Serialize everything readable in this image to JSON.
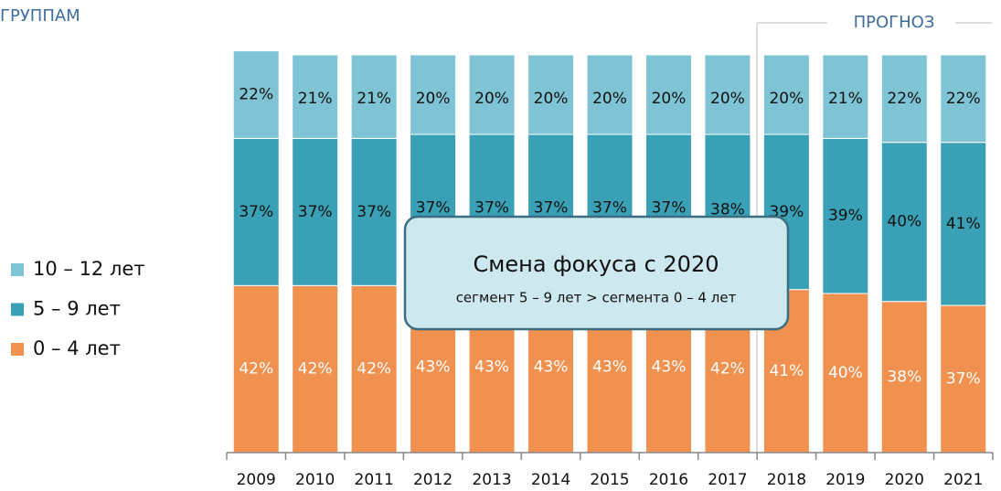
{
  "chart_data": {
    "type": "stacked_bar",
    "title": "ГРУППАМ",
    "forecast_label": "ПРОГНОЗ",
    "annotation": {
      "title": "Смена фокуса с 2020",
      "text": "сегмент 5 – 9 лет > сегмента 0 – 4 лет"
    },
    "categories": [
      "2009",
      "2010",
      "2011",
      "2012",
      "2013",
      "2014",
      "2015",
      "2016",
      "2017",
      "2018",
      "2019",
      "2020",
      "2021"
    ],
    "ylim": [
      0,
      100
    ],
    "series": [
      {
        "name": "10 – 12 лет",
        "color": "#7fc4d4",
        "label_color": "#111111",
        "values": [
          22,
          21,
          21,
          20,
          20,
          20,
          20,
          20,
          20,
          20,
          21,
          22,
          22
        ],
        "value_labels": [
          "22%",
          "21%",
          "21%",
          "20%",
          "20%",
          "20%",
          "20%",
          "20%",
          "20%",
          "20%",
          "21%",
          "22%",
          "22%"
        ]
      },
      {
        "name": "5 – 9 лет",
        "color": "#3aa0b5",
        "label_color": "#111111",
        "values": [
          37,
          37,
          37,
          37,
          37,
          37,
          37,
          37,
          38,
          39,
          39,
          40,
          41
        ],
        "value_labels": [
          "37%",
          "37%",
          "37%",
          "37%",
          "37%",
          "37%",
          "37%",
          "37%",
          "38%",
          "39%",
          "39%",
          "40%",
          "41%"
        ]
      },
      {
        "name": "0 – 4 лет",
        "color": "#f0914f",
        "label_color": "#ffffff",
        "values": [
          42,
          42,
          42,
          43,
          43,
          43,
          43,
          43,
          42,
          41,
          40,
          38,
          37
        ],
        "value_labels": [
          "42%",
          "42%",
          "42%",
          "43%",
          "43%",
          "43%",
          "43%",
          "43%",
          "42%",
          "41%",
          "40%",
          "38%",
          "37%"
        ]
      }
    ]
  }
}
